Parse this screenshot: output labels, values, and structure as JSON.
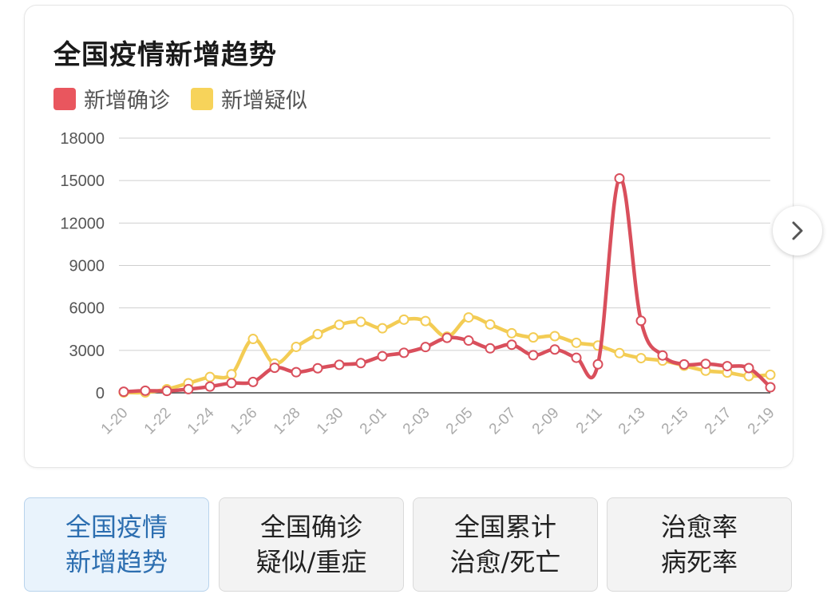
{
  "card": {
    "title": "全国疫情新增趋势"
  },
  "chart_data": {
    "type": "line",
    "title": "全国疫情新增趋势",
    "x_labels": [
      "1-20",
      "1-22",
      "1-24",
      "1-26",
      "1-28",
      "1-30",
      "2-01",
      "2-03",
      "2-05",
      "2-07",
      "2-09",
      "2-11",
      "2-13",
      "2-15",
      "2-17",
      "2-19"
    ],
    "x": [
      "1-20",
      "1-21",
      "1-22",
      "1-23",
      "1-24",
      "1-25",
      "1-26",
      "1-27",
      "1-28",
      "1-29",
      "1-30",
      "1-31",
      "2-01",
      "2-02",
      "2-03",
      "2-04",
      "2-05",
      "2-06",
      "2-07",
      "2-08",
      "2-09",
      "2-10",
      "2-11",
      "2-12",
      "2-13",
      "2-14",
      "2-15",
      "2-16",
      "2-17",
      "2-18",
      "2-19"
    ],
    "ylim": [
      0,
      18000
    ],
    "yticks": [
      0,
      3000,
      6000,
      9000,
      12000,
      15000,
      18000
    ],
    "grid": true,
    "legend_position": "top-left",
    "series": [
      {
        "name": "新增确诊",
        "color": "#d94f5c",
        "values": [
          77,
          149,
          131,
          259,
          444,
          688,
          769,
          1771,
          1459,
          1737,
          1982,
          2102,
          2590,
          2829,
          3235,
          3887,
          3694,
          3143,
          3399,
          2656,
          3062,
          2478,
          2015,
          15152,
          5090,
          2641,
          2009,
          2048,
          1886,
          1749,
          394
        ]
      },
      {
        "name": "新增疑似",
        "color": "#f3cc54",
        "values": [
          27,
          26,
          257,
          680,
          1118,
          1309,
          3806,
          2077,
          3248,
          4148,
          4812,
          5019,
          4562,
          5173,
          5072,
          3971,
          5328,
          4833,
          4214,
          3916,
          4008,
          3536,
          3342,
          2807,
          2450,
          2277,
          1918,
          1563,
          1432,
          1185,
          1277
        ]
      }
    ]
  },
  "next_button": {
    "icon": "chevron-right-icon"
  },
  "tabs": [
    {
      "line1": "全国疫情",
      "line2": "新增趋势",
      "active": true
    },
    {
      "line1": "全国确诊",
      "line2": "疑似/重症",
      "active": false
    },
    {
      "line1": "全国累计",
      "line2": "治愈/死亡",
      "active": false
    },
    {
      "line1": "治愈率",
      "line2": "病死率",
      "active": false
    }
  ]
}
